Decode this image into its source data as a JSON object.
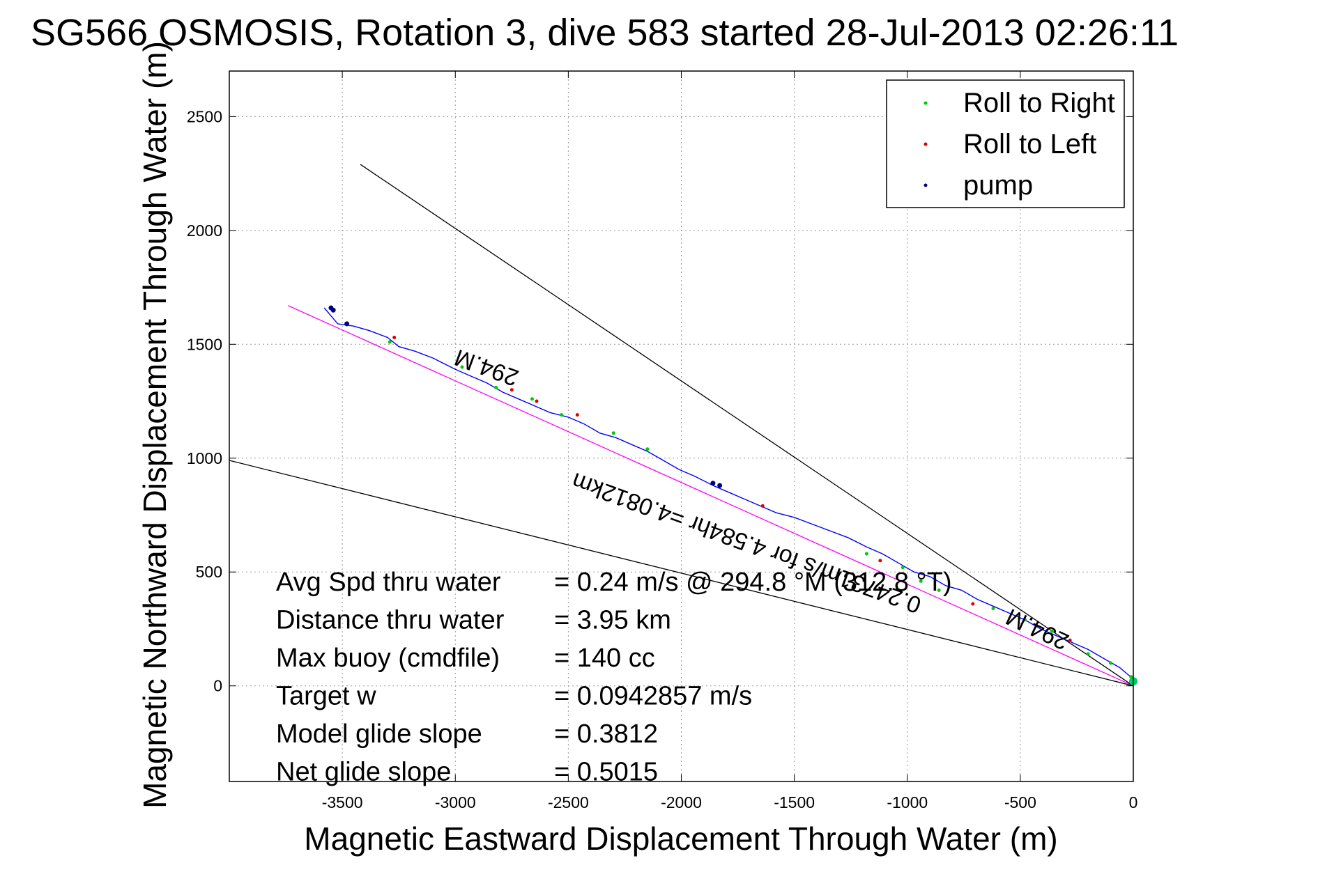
{
  "chart_data": {
    "type": "line",
    "title": "SG566 OSMOSIS, Rotation 3, dive 583 started 28-Jul-2013 02:26:11",
    "xlabel": "Magnetic Eastward Displacement Through Water (m)",
    "ylabel": "Magnetic Northward Displacement Through Water (m)",
    "xlim": [
      -4000,
      0
    ],
    "ylim": [
      -420,
      2700
    ],
    "grid": true,
    "xticks": [
      -3500,
      -3000,
      -2500,
      -2000,
      -1500,
      -1000,
      -500,
      0
    ],
    "yticks": [
      0,
      500,
      1000,
      1500,
      2000,
      2500
    ],
    "xtick_labels": [
      "-3500",
      "-3000",
      "-2500",
      "-2000",
      "-1500",
      "-1000",
      "-500",
      "0"
    ],
    "ytick_labels": [
      "0",
      "500",
      "1000",
      "1500",
      "2000",
      "2500"
    ],
    "legend_position": "top-right",
    "legend": [
      {
        "label": "Roll to Right",
        "color": "#00cc00"
      },
      {
        "label": "Roll to Left",
        "color": "#dd0000"
      },
      {
        "label": "pump",
        "color": "#000080"
      }
    ],
    "track": {
      "color": "#0000ff",
      "x": [
        -3580,
        -3520,
        -3450,
        -3380,
        -3300,
        -3250,
        -3180,
        -3100,
        -3000,
        -2930,
        -2860,
        -2790,
        -2720,
        -2650,
        -2580,
        -2500,
        -2430,
        -2360,
        -2290,
        -2220,
        -2150,
        -2080,
        -2010,
        -1940,
        -1860,
        -1790,
        -1720,
        -1650,
        -1580,
        -1500,
        -1420,
        -1340,
        -1260,
        -1180,
        -1110,
        -1040,
        -970,
        -900,
        -830,
        -760,
        -690,
        -620,
        -550,
        -480,
        -410,
        -340,
        -270,
        -200,
        -130,
        -60,
        0
      ],
      "y": [
        1660,
        1590,
        1580,
        1560,
        1530,
        1490,
        1470,
        1440,
        1390,
        1360,
        1330,
        1290,
        1260,
        1230,
        1200,
        1180,
        1150,
        1110,
        1090,
        1060,
        1030,
        990,
        950,
        920,
        880,
        850,
        820,
        790,
        760,
        740,
        710,
        680,
        650,
        610,
        580,
        540,
        500,
        480,
        440,
        420,
        380,
        350,
        320,
        290,
        250,
        220,
        190,
        160,
        120,
        80,
        30
      ]
    },
    "roll_right_points": {
      "x": [
        -3290,
        -2970,
        -2820,
        -2660,
        -2530,
        -2300,
        -2150,
        -1180,
        -1020,
        -940,
        -860,
        -620,
        -480,
        -360,
        -200,
        -100,
        -10
      ],
      "y": [
        1510,
        1400,
        1310,
        1260,
        1190,
        1110,
        1040,
        580,
        520,
        460,
        420,
        340,
        290,
        240,
        140,
        100,
        40
      ]
    },
    "roll_left_points": {
      "x": [
        -3270,
        -2750,
        -2640,
        -2460,
        -1640,
        -1120,
        -710,
        -280
      ],
      "y": [
        1530,
        1300,
        1250,
        1190,
        790,
        550,
        360,
        200
      ]
    },
    "pump_points": {
      "x": [
        -3540,
        -3480,
        -1860,
        -1830,
        -3550
      ],
      "y": [
        1650,
        1590,
        890,
        880,
        1660
      ]
    },
    "reference_lines": [
      {
        "color": "#ff00ff",
        "x": [
          -3740,
          0
        ],
        "y": [
          1670,
          0
        ]
      },
      {
        "color": "#000000",
        "x": [
          -3420,
          0
        ],
        "y": [
          2290,
          0
        ]
      },
      {
        "color": "#000000",
        "x": [
          -4000,
          0
        ],
        "y": [
          990,
          0
        ]
      }
    ],
    "annotations": [
      {
        "text": "294.M",
        "x": -2850,
        "y": 1430,
        "rotation": 200
      },
      {
        "text": "0.24731m/s for 4.584hr =4.0812km",
        "x": -1700,
        "y": 660,
        "rotation": 200
      },
      {
        "text": "294.M",
        "x": -410,
        "y": 280,
        "rotation": 205
      }
    ],
    "stats": [
      {
        "label": "Avg Spd thru water",
        "value": "=  0.24 m/s @ 294.8  °M (312.8 °T)"
      },
      {
        "label": "Distance thru water",
        "value": "=  3.95 km"
      },
      {
        "label": "Max buoy (cmdfile)",
        "value": "= 140 cc"
      },
      {
        "label": "Target w",
        "value": "= 0.0942857 m/s"
      },
      {
        "label": "Model glide slope",
        "value": "= 0.3812"
      },
      {
        "label": "Net glide slope",
        "value": "= 0.5015"
      }
    ]
  }
}
